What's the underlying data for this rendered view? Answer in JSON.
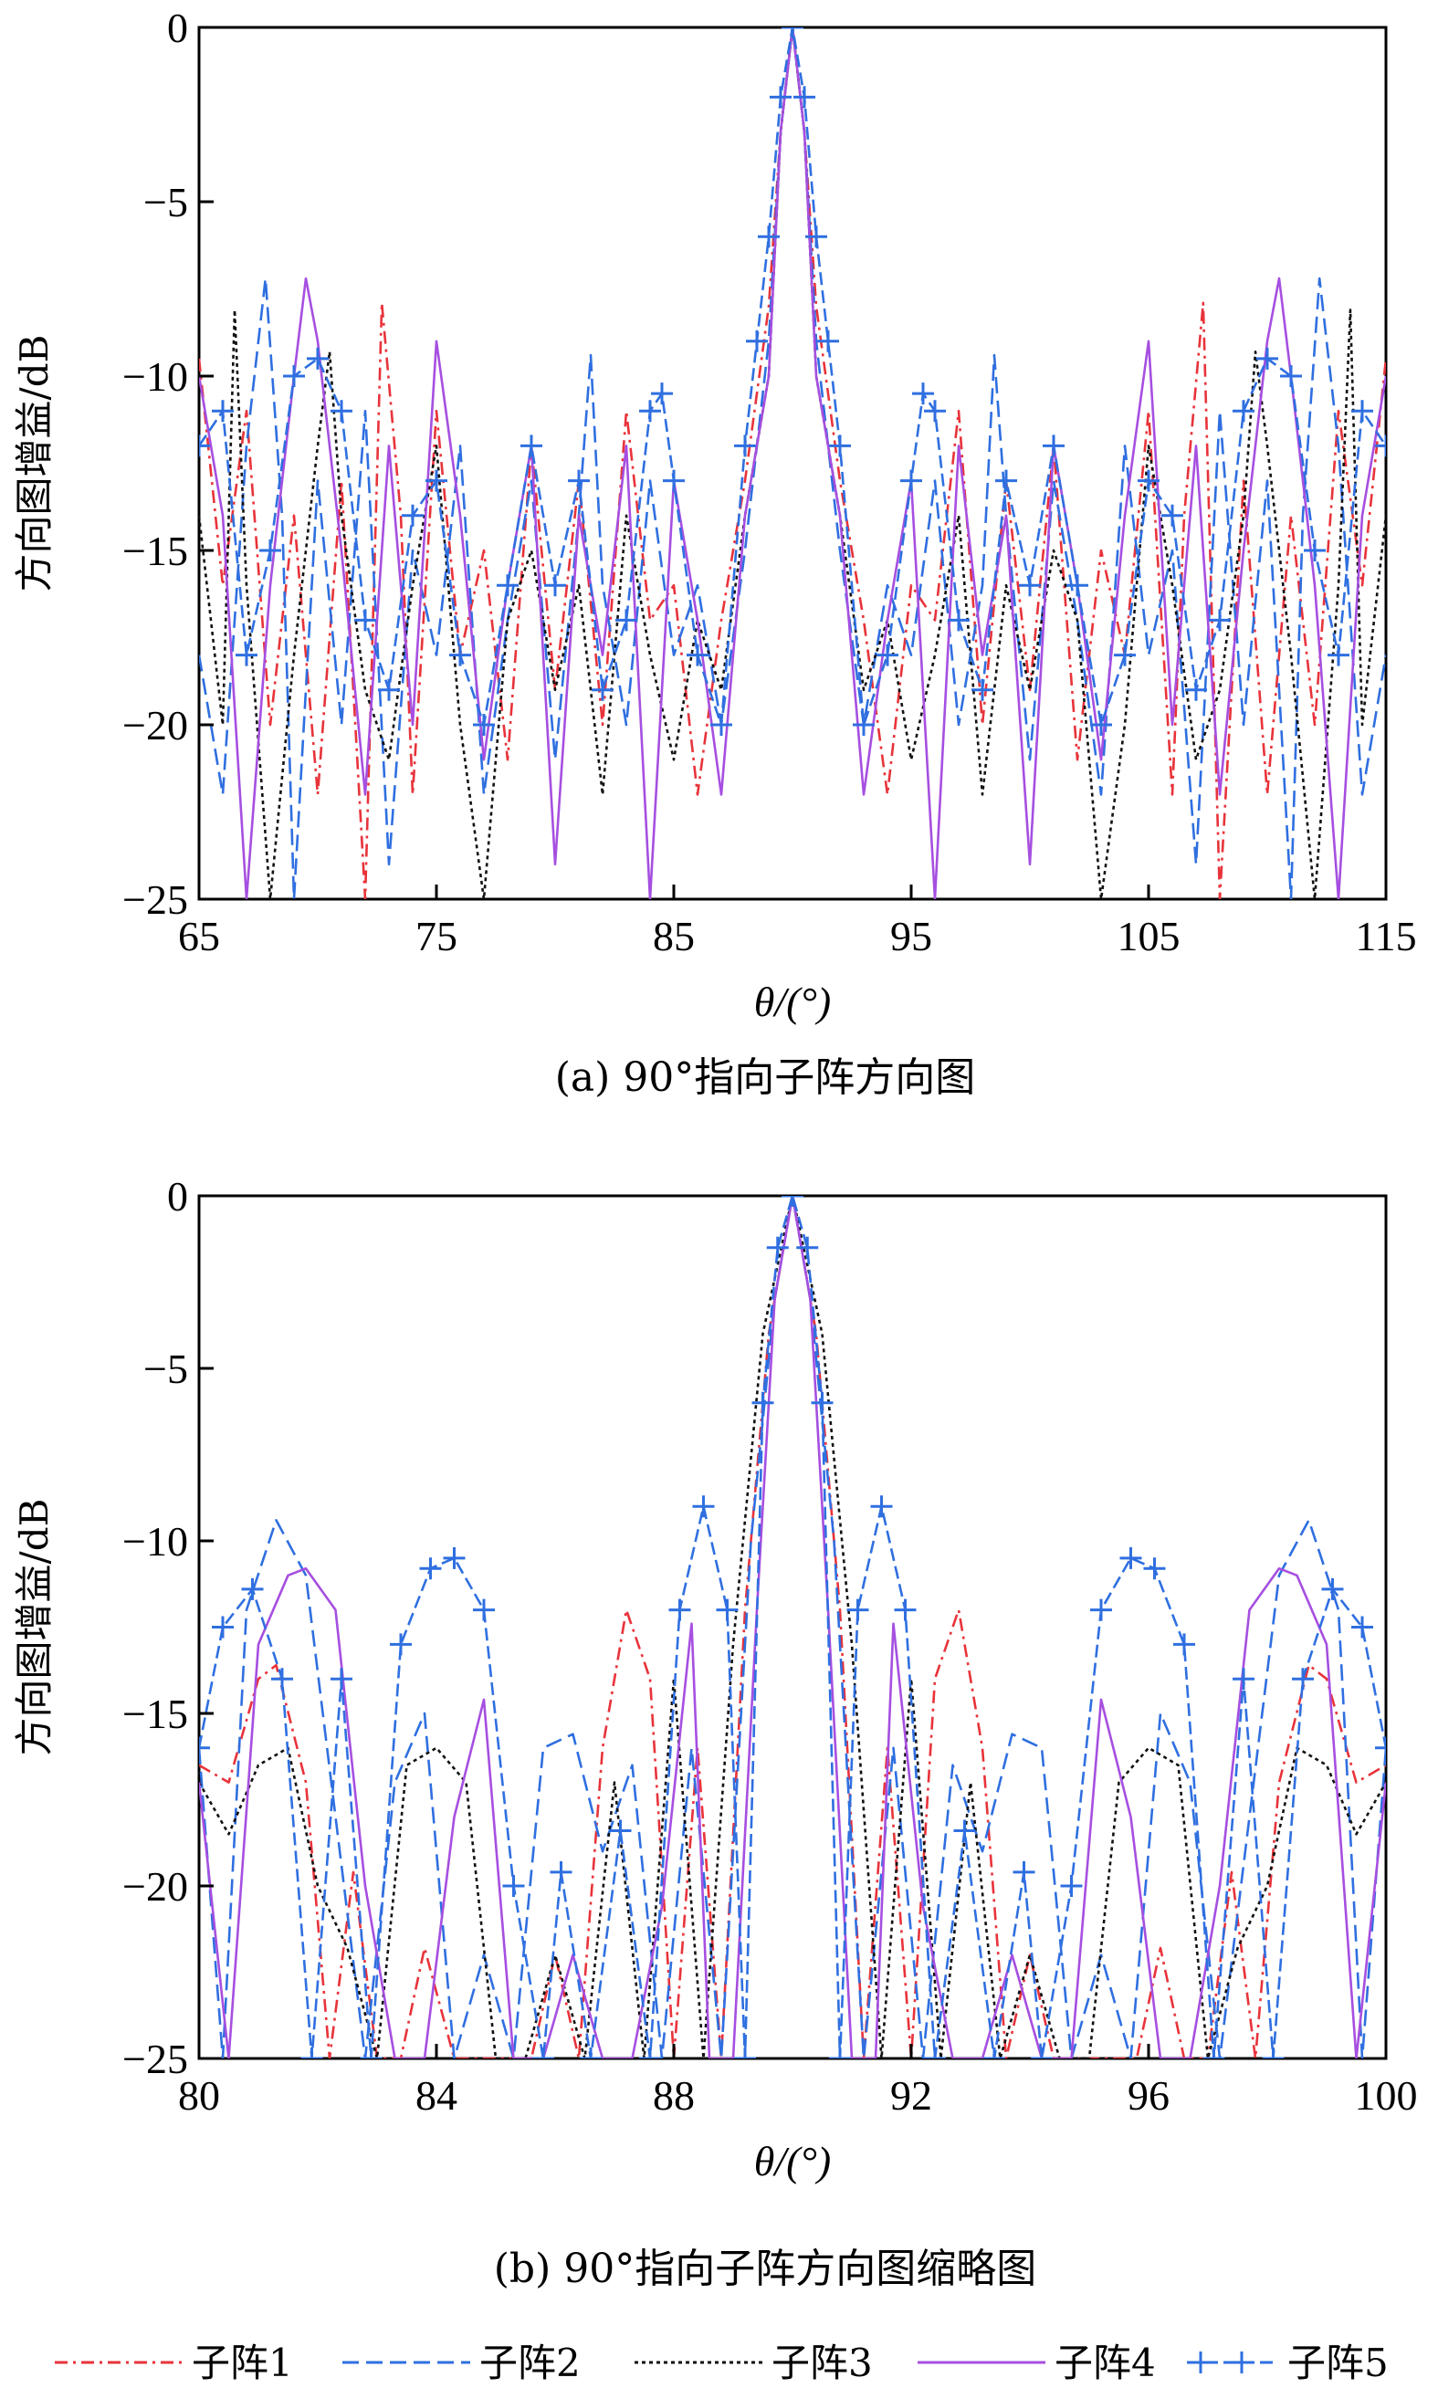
{
  "colors": {
    "s1": "#e8333a",
    "s2": "#2f6fe0",
    "s3": "#111111",
    "s4": "#a64fe0",
    "s5": "#2f6fe0",
    "axis": "#000000"
  },
  "legend": [
    "子阵1",
    "子阵2",
    "子阵3",
    "子阵4",
    "子阵5"
  ],
  "chart_data": [
    {
      "type": "line",
      "caption": "(a) 90°指向子阵方向图",
      "xlabel": "θ/(°)",
      "ylabel": "方向图增益/dB",
      "xlim": [
        65,
        115
      ],
      "ylim": [
        -25,
        0
      ],
      "xticks": [
        "65",
        "75",
        "85",
        "95",
        "105",
        "115"
      ],
      "yticks": [
        "0",
        "−5",
        "−10",
        "−15",
        "−20",
        "−25"
      ],
      "series": [
        {
          "name": "子阵1",
          "x": [
            65,
            66,
            67,
            68,
            69,
            70,
            71,
            72,
            72.7,
            73.5,
            74,
            75,
            76,
            77,
            78,
            79,
            80,
            81,
            82,
            83,
            84,
            85,
            86,
            87,
            88,
            89,
            89.5,
            90,
            90.5,
            91,
            92,
            93,
            94,
            95,
            96,
            97,
            98,
            99,
            100,
            101,
            102,
            103,
            104,
            105,
            106,
            106.5,
            107.3,
            108,
            109,
            110,
            111,
            112,
            113,
            114,
            115
          ],
          "values": [
            -9.5,
            -16,
            -11,
            -20,
            -14,
            -22,
            -13,
            -25,
            -7.9,
            -14,
            -22,
            -11,
            -18,
            -15,
            -21,
            -12,
            -19,
            -13,
            -20,
            -11,
            -17,
            -16,
            -22,
            -17,
            -13,
            -8,
            -3,
            0,
            -3,
            -8,
            -13,
            -17,
            -22,
            -16,
            -17,
            -11,
            -20,
            -13,
            -19,
            -12,
            -21,
            -15,
            -18,
            -11,
            -22,
            -14,
            -7.9,
            -25,
            -13,
            -22,
            -14,
            -20,
            -11,
            -16,
            -9.5
          ]
        },
        {
          "name": "子阵2",
          "x": [
            65,
            66,
            67,
            67.8,
            68.5,
            69,
            70,
            71,
            72,
            73,
            74,
            75,
            76,
            77,
            78,
            79,
            80,
            81,
            81.5,
            82,
            83,
            84,
            85,
            86,
            87,
            88,
            89,
            89.5,
            90,
            90.5,
            91,
            92,
            93,
            94,
            95,
            96,
            97,
            98,
            98.5,
            99,
            100,
            101,
            102,
            103,
            104,
            105,
            106,
            107,
            108,
            109,
            110,
            111,
            111.5,
            112.2,
            113,
            114,
            115
          ],
          "values": [
            -18,
            -22,
            -12,
            -7.2,
            -14,
            -25,
            -13,
            -20,
            -11,
            -24,
            -15,
            -18,
            -12,
            -22,
            -17,
            -13,
            -21,
            -14,
            -9.4,
            -16,
            -20,
            -13,
            -18,
            -16,
            -20,
            -15,
            -9,
            -3,
            0,
            -3,
            -9,
            -15,
            -20,
            -16,
            -18,
            -13,
            -20,
            -16,
            -9.4,
            -14,
            -21,
            -13,
            -17,
            -22,
            -12,
            -18,
            -15,
            -24,
            -11,
            -20,
            -13,
            -25,
            -14,
            -7.2,
            -12,
            -22,
            -18
          ]
        },
        {
          "name": "子阵3",
          "x": [
            65,
            66,
            66.5,
            67,
            68,
            69,
            70,
            70.5,
            71,
            72,
            73,
            74,
            75,
            76,
            77,
            78,
            79,
            80,
            81,
            82,
            83,
            84,
            85,
            86,
            87,
            88,
            89,
            89.5,
            90,
            90.5,
            91,
            92,
            93,
            94,
            95,
            96,
            97,
            98,
            99,
            100,
            101,
            102,
            103,
            104,
            105,
            106,
            107,
            108,
            109,
            109.5,
            110,
            111,
            112,
            113,
            113.5,
            114,
            115
          ],
          "values": [
            -14,
            -20,
            -8.1,
            -16,
            -25,
            -18,
            -12,
            -9.3,
            -14,
            -19,
            -21,
            -16,
            -12,
            -20,
            -25,
            -17,
            -15,
            -19,
            -16,
            -22,
            -14,
            -18,
            -21,
            -17,
            -19,
            -14,
            -10,
            -3,
            0,
            -3,
            -10,
            -14,
            -19,
            -17,
            -21,
            -18,
            -14,
            -22,
            -16,
            -19,
            -15,
            -17,
            -25,
            -20,
            -12,
            -16,
            -21,
            -19,
            -14,
            -9.3,
            -12,
            -18,
            -25,
            -16,
            -8.1,
            -20,
            -14
          ]
        },
        {
          "name": "子阵4",
          "x": [
            65,
            66,
            67,
            68,
            69,
            69.5,
            70,
            71,
            72,
            73,
            74,
            75,
            76,
            77,
            78,
            79,
            80,
            81,
            82,
            83,
            84,
            85,
            86,
            87,
            88,
            89,
            89.5,
            90,
            90.5,
            91,
            92,
            93,
            94,
            95,
            96,
            97,
            98,
            99,
            100,
            101,
            102,
            103,
            104,
            105,
            106,
            107,
            108,
            109,
            110,
            110.5,
            111,
            112,
            113,
            114,
            115
          ],
          "values": [
            -10,
            -14,
            -25,
            -16,
            -10,
            -7.2,
            -9,
            -15,
            -22,
            -12,
            -20,
            -9,
            -14,
            -21,
            -16,
            -12,
            -24,
            -14,
            -18,
            -12,
            -25,
            -13,
            -17,
            -22,
            -14,
            -10,
            -3,
            0,
            -3,
            -10,
            -14,
            -22,
            -17,
            -13,
            -25,
            -12,
            -18,
            -14,
            -24,
            -12,
            -16,
            -21,
            -14,
            -9,
            -20,
            -12,
            -22,
            -15,
            -9,
            -7.2,
            -10,
            -16,
            -25,
            -14,
            -10
          ]
        },
        {
          "name": "子阵5",
          "x": [
            65,
            66,
            67,
            68,
            69,
            70,
            71,
            72,
            73,
            74,
            75,
            76,
            77,
            78,
            79,
            80,
            81,
            82,
            83,
            84,
            84.5,
            85,
            86,
            87,
            88,
            88.5,
            89,
            89.5,
            90,
            90.5,
            91,
            91.5,
            92,
            93,
            94,
            95,
            95.5,
            96,
            97,
            98,
            99,
            100,
            101,
            102,
            103,
            104,
            105,
            106,
            107,
            108,
            109,
            110,
            111,
            112,
            113,
            114,
            115
          ],
          "values": [
            -12,
            -11,
            -18,
            -15,
            -10,
            -9.5,
            -11,
            -17,
            -19,
            -14,
            -13,
            -18,
            -20,
            -16,
            -12,
            -16,
            -13,
            -19,
            -17,
            -11,
            -10.5,
            -13,
            -18,
            -20,
            -12,
            -9,
            -6,
            -2,
            0,
            -2,
            -6,
            -9,
            -12,
            -20,
            -18,
            -13,
            -10.5,
            -11,
            -17,
            -19,
            -13,
            -16,
            -12,
            -16,
            -20,
            -18,
            -13,
            -14,
            -19,
            -17,
            -11,
            -9.5,
            -10,
            -15,
            -18,
            -11,
            -12
          ]
        }
      ]
    },
    {
      "type": "line",
      "caption": "(b) 90°指向子阵方向图缩略图",
      "xlabel": "θ/(°)",
      "ylabel": "方向图增益/dB",
      "xlim": [
        80,
        100
      ],
      "ylim": [
        -25,
        0
      ],
      "xticks": [
        "80",
        "84",
        "88",
        "92",
        "96",
        "100"
      ],
      "yticks": [
        "0",
        "−5",
        "−10",
        "−15",
        "−20",
        "−25"
      ],
      "series": [
        {
          "name": "子阵1",
          "x": [
            80,
            80.5,
            81,
            81.3,
            81.8,
            82.2,
            82.6,
            83,
            83.4,
            83.8,
            84.3,
            84.7,
            85.2,
            85.6,
            86,
            86.4,
            86.8,
            87.2,
            87.6,
            88,
            88.4,
            88.8,
            89.2,
            89.6,
            90,
            90.4,
            90.8,
            91.2,
            91.6,
            92,
            92.4,
            92.8,
            93.2,
            93.6,
            94,
            94.4,
            94.8,
            95.3,
            95.8,
            96.2,
            96.6,
            97,
            97.4,
            97.8,
            98.2,
            98.7,
            99,
            99.5,
            100
          ],
          "values": [
            -16.5,
            -17,
            -14,
            -13.6,
            -17,
            -25,
            -19.6,
            -25,
            -25,
            -21.8,
            -25,
            -25,
            -25,
            -25,
            -22,
            -25,
            -16,
            -12,
            -14,
            -25,
            -16,
            -25,
            -12,
            -4,
            0,
            -4,
            -12,
            -25,
            -16,
            -25,
            -14,
            -12,
            -16,
            -25,
            -22,
            -25,
            -25,
            -25,
            -25,
            -21.8,
            -25,
            -25,
            -19.6,
            -25,
            -17,
            -13.6,
            -14,
            -17,
            -16.5
          ]
        },
        {
          "name": "子阵2",
          "x": [
            80,
            80.4,
            80.8,
            81.3,
            81.8,
            82.3,
            82.8,
            83.3,
            83.8,
            84.3,
            84.8,
            85.3,
            85.8,
            86.3,
            86.8,
            87.3,
            87.8,
            88.3,
            88.8,
            89.3,
            89.7,
            90,
            90.3,
            90.7,
            91.2,
            91.7,
            92.2,
            92.7,
            93.2,
            93.7,
            94.2,
            94.7,
            95.2,
            95.7,
            96.2,
            96.7,
            97.2,
            97.7,
            98.2,
            98.7,
            99.2,
            99.6,
            100
          ],
          "values": [
            -16,
            -25,
            -12,
            -9.4,
            -11,
            -18,
            -25,
            -17,
            -15,
            -25,
            -22,
            -25,
            -16,
            -15.6,
            -19,
            -16.5,
            -25,
            -16,
            -25,
            -10,
            -3,
            0,
            -3,
            -10,
            -25,
            -16,
            -25,
            -16.5,
            -19,
            -15.6,
            -16,
            -25,
            -22,
            -25,
            -15,
            -17,
            -25,
            -18,
            -11,
            -9.4,
            -12,
            -25,
            -16
          ]
        },
        {
          "name": "子阵3",
          "x": [
            80,
            80.5,
            81,
            81.5,
            82,
            82.5,
            83,
            83.5,
            84,
            84.5,
            85,
            85.5,
            86,
            86.5,
            87,
            87.5,
            88,
            88.5,
            89,
            89.5,
            90,
            90.5,
            91,
            91.5,
            92,
            92.5,
            93,
            93.5,
            94,
            94.5,
            95,
            95.5,
            96,
            96.5,
            97,
            97.5,
            98,
            98.5,
            99,
            99.5,
            100
          ],
          "values": [
            -17,
            -18.5,
            -16.5,
            -16,
            -20,
            -21.8,
            -25,
            -16.5,
            -16,
            -17,
            -25,
            -25,
            -22,
            -25,
            -17,
            -25,
            -14,
            -25,
            -13,
            -4,
            0,
            -4,
            -13,
            -25,
            -14,
            -25,
            -17,
            -25,
            -22,
            -25,
            -25,
            -17,
            -16,
            -16.5,
            -25,
            -21.8,
            -20,
            -16,
            -16.5,
            -18.5,
            -17
          ]
        },
        {
          "name": "子阵4",
          "x": [
            80,
            80.5,
            81,
            81.5,
            81.8,
            82.3,
            82.8,
            83.3,
            83.8,
            84.3,
            84.8,
            85.3,
            85.8,
            86.3,
            86.8,
            87.3,
            87.8,
            88.3,
            88.6,
            89,
            89.4,
            89.7,
            90,
            90.3,
            90.6,
            91,
            91.4,
            91.7,
            92.2,
            92.7,
            93.2,
            93.7,
            94.2,
            94.7,
            95.2,
            95.7,
            96.2,
            96.7,
            97.2,
            97.7,
            98.2,
            98.5,
            99,
            99.5,
            100
          ],
          "values": [
            -17,
            -25,
            -13,
            -11,
            -10.8,
            -12,
            -20,
            -25,
            -25,
            -18,
            -14.6,
            -25,
            -25,
            -22,
            -25,
            -25,
            -20.6,
            -12.4,
            -25,
            -25,
            -12,
            -3,
            0,
            -3,
            -12,
            -25,
            -25,
            -12.4,
            -20.6,
            -25,
            -25,
            -22,
            -25,
            -25,
            -14.6,
            -18,
            -25,
            -25,
            -20,
            -12,
            -10.8,
            -11,
            -13,
            -25,
            -17
          ]
        },
        {
          "name": "子阵5",
          "x": [
            80,
            80.4,
            80.9,
            81.4,
            81.9,
            82.4,
            82.9,
            83.4,
            83.9,
            84.3,
            84.8,
            85.3,
            85.8,
            86.1,
            86.6,
            87.1,
            87.6,
            88.1,
            88.5,
            88.9,
            89.2,
            89.5,
            89.75,
            90,
            90.25,
            90.5,
            90.8,
            91.1,
            91.5,
            91.9,
            92.4,
            92.9,
            93.4,
            93.9,
            94.2,
            94.7,
            95.2,
            95.7,
            96.1,
            96.6,
            97.1,
            97.6,
            98.1,
            98.6,
            99.1,
            99.6,
            100
          ],
          "values": [
            -16,
            -12.5,
            -11.4,
            -14,
            -25,
            -14,
            -25,
            -13,
            -10.8,
            -10.5,
            -12,
            -20,
            -25,
            -19.6,
            -25,
            -18.4,
            -25,
            -12,
            -9,
            -12,
            -25,
            -6,
            -1.5,
            0,
            -1.5,
            -6,
            -25,
            -12,
            -9,
            -12,
            -25,
            -18.4,
            -25,
            -19.6,
            -25,
            -20,
            -12,
            -10.5,
            -10.8,
            -13,
            -25,
            -14,
            -25,
            -14,
            -11.4,
            -12.5,
            -16
          ]
        }
      ]
    }
  ]
}
